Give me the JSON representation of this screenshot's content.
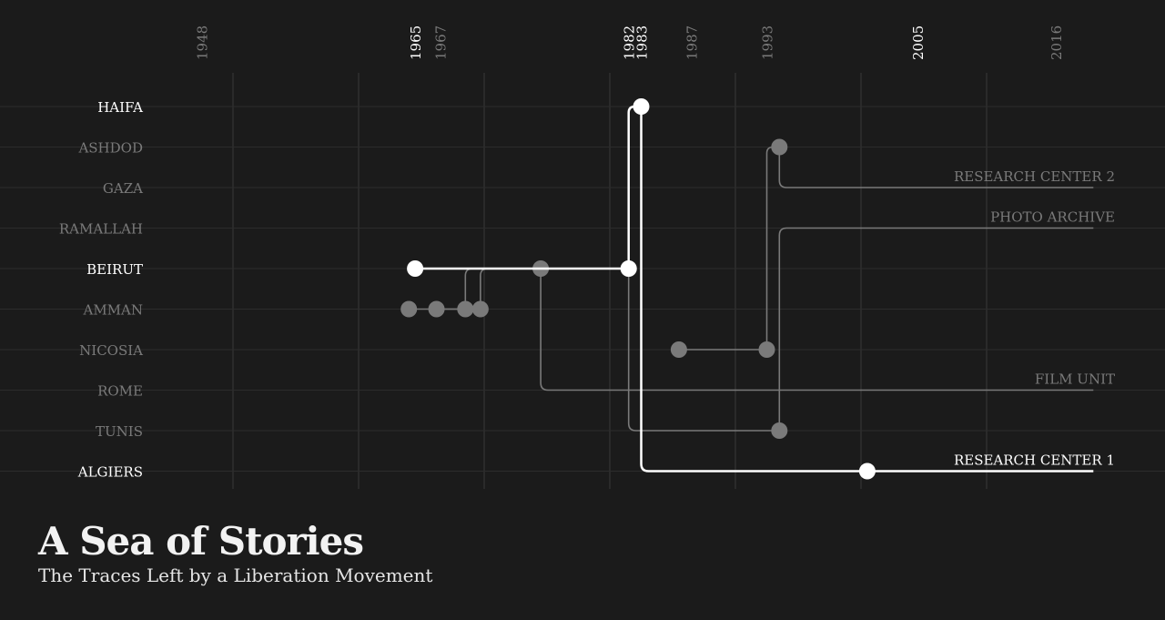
{
  "title": "A Sea of Stories",
  "subtitle": "The Traces Left by a Liberation Movement",
  "colors": {
    "background": "#1b1b1b",
    "highlight": "#ffffff",
    "muted": "#7a7a7a",
    "grid": "#3a3a3a"
  },
  "chart_data": {
    "type": "line",
    "x_axis": {
      "unit": "year",
      "ticks": [
        {
          "year": 1948,
          "label": "1948",
          "highlight": false
        },
        {
          "year": 1965,
          "label": "1965",
          "highlight": true
        },
        {
          "year": 1967,
          "label": "1967",
          "highlight": false
        },
        {
          "year": 1982,
          "label": "1982",
          "highlight": true
        },
        {
          "year": 1983,
          "label": "1983",
          "highlight": true
        },
        {
          "year": 1987,
          "label": "1987",
          "highlight": false
        },
        {
          "year": 1993,
          "label": "1993",
          "highlight": false
        },
        {
          "year": 2005,
          "label": "2005",
          "highlight": true
        },
        {
          "year": 2016,
          "label": "2016",
          "highlight": false
        }
      ]
    },
    "y_categories": [
      {
        "label": "HAIFA",
        "highlight": true
      },
      {
        "label": "ASHDOD",
        "highlight": false
      },
      {
        "label": "GAZA",
        "highlight": false
      },
      {
        "label": "RAMALLAH",
        "highlight": false
      },
      {
        "label": "BEIRUT",
        "highlight": true
      },
      {
        "label": "AMMAN",
        "highlight": false
      },
      {
        "label": "NICOSIA",
        "highlight": false
      },
      {
        "label": "ROME",
        "highlight": false
      },
      {
        "label": "TUNIS",
        "highlight": false
      },
      {
        "label": "ALGIERS",
        "highlight": true
      }
    ],
    "series": [
      {
        "name": "RESEARCH CENTER 1",
        "highlight": true,
        "path": [
          {
            "year": 1965,
            "place": "BEIRUT"
          },
          {
            "year": 1982,
            "place": "BEIRUT"
          },
          {
            "year": 1982,
            "place": "HAIFA"
          },
          {
            "year": 1983,
            "place": "HAIFA"
          },
          {
            "year": 1983,
            "place": "ALGIERS"
          },
          {
            "year": 2019,
            "place": "ALGIERS"
          }
        ],
        "points": [
          {
            "year": 1965,
            "place": "BEIRUT"
          },
          {
            "year": 1982,
            "place": "BEIRUT"
          },
          {
            "year": 1983,
            "place": "HAIFA"
          },
          {
            "year": 2001,
            "place": "ALGIERS"
          }
        ]
      },
      {
        "name": "RESEARCH CENTER 2",
        "highlight": false,
        "path": [
          {
            "year": 1986,
            "place": "NICOSIA"
          },
          {
            "year": 1993,
            "place": "NICOSIA"
          },
          {
            "year": 1993,
            "place": "ASHDOD"
          },
          {
            "year": 1994,
            "place": "ASHDOD"
          },
          {
            "year": 1994,
            "place": "GAZA"
          },
          {
            "year": 2019,
            "place": "GAZA"
          }
        ],
        "points": [
          {
            "year": 1986,
            "place": "NICOSIA"
          },
          {
            "year": 1993,
            "place": "NICOSIA"
          },
          {
            "year": 1994,
            "place": "ASHDOD"
          }
        ]
      },
      {
        "name": "PHOTO ARCHIVE",
        "highlight": false,
        "path": [
          {
            "year": 1964.5,
            "place": "AMMAN"
          },
          {
            "year": 1969,
            "place": "AMMAN"
          },
          {
            "year": 1969,
            "place": "BEIRUT"
          },
          {
            "year": 1982,
            "place": "BEIRUT"
          },
          {
            "year": 1982,
            "place": "TUNIS"
          },
          {
            "year": 1994,
            "place": "TUNIS"
          },
          {
            "year": 1994,
            "place": "RAMALLAH"
          },
          {
            "year": 2019,
            "place": "RAMALLAH"
          }
        ],
        "points": [
          {
            "year": 1964.5,
            "place": "AMMAN"
          },
          {
            "year": 1969,
            "place": "AMMAN"
          },
          {
            "year": 1982,
            "place": "BEIRUT"
          },
          {
            "year": 1994,
            "place": "TUNIS"
          }
        ]
      },
      {
        "name": "FILM UNIT",
        "highlight": false,
        "path": [
          {
            "year": 1966.7,
            "place": "AMMAN"
          },
          {
            "year": 1970.2,
            "place": "AMMAN"
          },
          {
            "year": 1970.2,
            "place": "BEIRUT"
          },
          {
            "year": 1975,
            "place": "BEIRUT"
          },
          {
            "year": 1975,
            "place": "ROME"
          },
          {
            "year": 2019,
            "place": "ROME"
          }
        ],
        "points": [
          {
            "year": 1966.7,
            "place": "AMMAN"
          },
          {
            "year": 1970.2,
            "place": "AMMAN"
          },
          {
            "year": 1975,
            "place": "BEIRUT"
          }
        ]
      }
    ]
  }
}
